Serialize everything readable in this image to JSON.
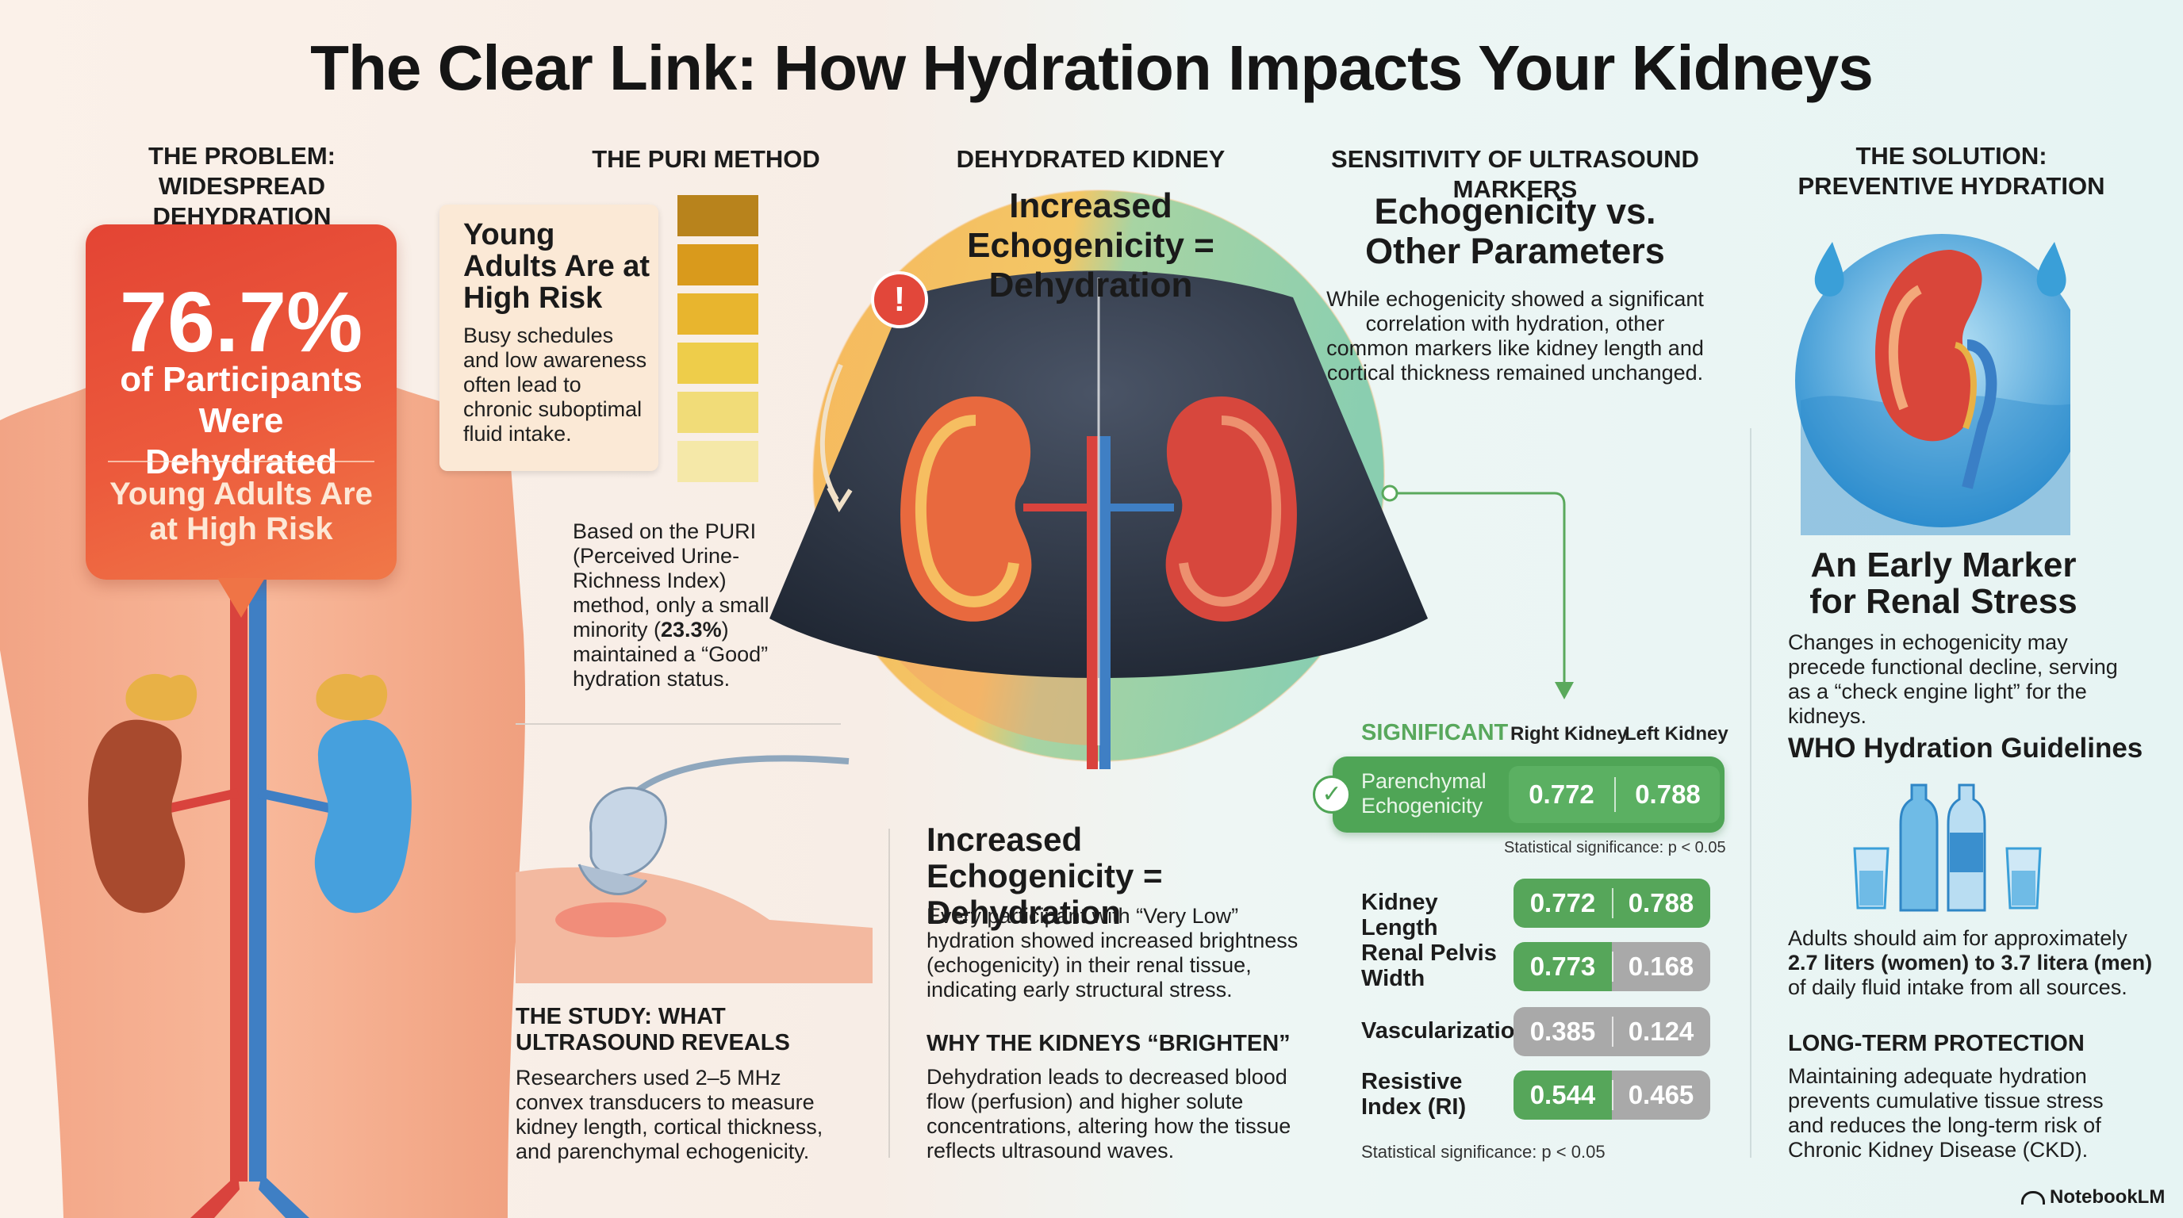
{
  "title": "The Clear Link: How Hydration Impacts Your Kidneys",
  "problem": {
    "heading": "THE PROBLEM: WIDESPREAD DEHYDRATION",
    "stat_value": "76.7%",
    "stat_label": "of Participants Were Dehydrated",
    "stat_sub": "Young Adults Are at High Risk"
  },
  "puri": {
    "heading": "THE PURI METHOD",
    "card_title": "Young Adults Are at High Risk",
    "card_body": "Busy schedules and low awareness often lead to chronic suboptimal fluid intake.",
    "swatch_colors": [
      "#b8831c",
      "#d99a1c",
      "#e8b52e",
      "#eecd4a",
      "#f1dc78",
      "#f5e8a8"
    ],
    "desc_1": "Based on the PURI (Perceived Urine-Richness Index) method, only a small minority (",
    "desc_highlight": "23.3%",
    "desc_2": ") maintained a “Good” hydration status."
  },
  "study": {
    "heading": "THE STUDY: WHAT ULTRASOUND REVEALS",
    "body": "Researchers used 2–5 MHz convex transducers to measure kidney length, cortical thickness, and parenchymal echogenicity."
  },
  "dehydrated": {
    "heading": "DEHYDRATED KIDNEY",
    "banner": "Increased Echogenicity = Dehydration",
    "subhead": "Increased Echogenicity = Dehydration",
    "subbody": "Every participant with “Very Low” hydration showed increased brightness (echogenicity) in their renal tissue, indicating early structural stress.",
    "why_heading": "WHY THE KIDNEYS “BRIGHTEN”",
    "why_body": "Dehydration leads to decreased blood flow (perfusion) and higher solute concentrations, altering how the tissue reflects ultrasound waves.",
    "alert_glyph": "!"
  },
  "sensitivity": {
    "heading": "SENSITIVITY OF ULTRASOUND MARKERS",
    "title": "Echogenicity vs. Other Parameters",
    "body": "While echogenicity showed a significant correlation with hydration, other common markers like kidney length and cortical thickness remained unchanged.",
    "significant_label": "SIGNIFICANT",
    "col_right": "Right Kidney",
    "col_left": "Left Kidney",
    "highlight_row": {
      "label": "Parenchymal Echogenicity",
      "right": "0.772",
      "left": "0.788"
    },
    "stat_note_1": "Statistical significance: p < 0.05",
    "rows": [
      {
        "label": "Kidney Length",
        "right": "0.772",
        "left": "0.788",
        "right_color": "#56a65a",
        "left_color": "#56a65a"
      },
      {
        "label": "Renal Pelvis Width",
        "right": "0.773",
        "left": "0.168",
        "right_color": "#56a65a",
        "left_color": "#a9a9a9"
      },
      {
        "label": "Vascularization",
        "right": "0.385",
        "left": "0.124",
        "right_color": "#a9a9a9",
        "left_color": "#a9a9a9"
      },
      {
        "label": "Resistive Index (RI)",
        "right": "0.544",
        "left": "0.465",
        "right_color": "#56a65a",
        "left_color": "#a9a9a9"
      }
    ],
    "stat_note_2": "Statistical significance: p < 0.05"
  },
  "solution": {
    "heading": "THE SOLUTION: PREVENTIVE HYDRATION",
    "marker_title": "An Early Marker for Renal Stress",
    "marker_body": "Changes in echogenicity may precede functional decline, serving as a “check engine light” for the kidneys.",
    "who_heading": "WHO Hydration Guidelines",
    "who_body_1": "Adults should aim for approximately",
    "who_body_bold": "2.7 liters (women) to 3.7 litera (men)",
    "who_body_2": "of daily fluid intake from all sources.",
    "lt_heading": "LONG-TERM PROTECTION",
    "lt_body": "Maintaining adequate hydration prevents cumulative tissue stress and reduces the long-term risk of Chronic Kidney Disease (CKD)."
  },
  "brand": "NotebookLM",
  "colors": {
    "accent_red": "#e34434",
    "significant_green": "#56a65a",
    "neutral_gray": "#a9a9a9",
    "water_blue": "#3a9fd8"
  }
}
